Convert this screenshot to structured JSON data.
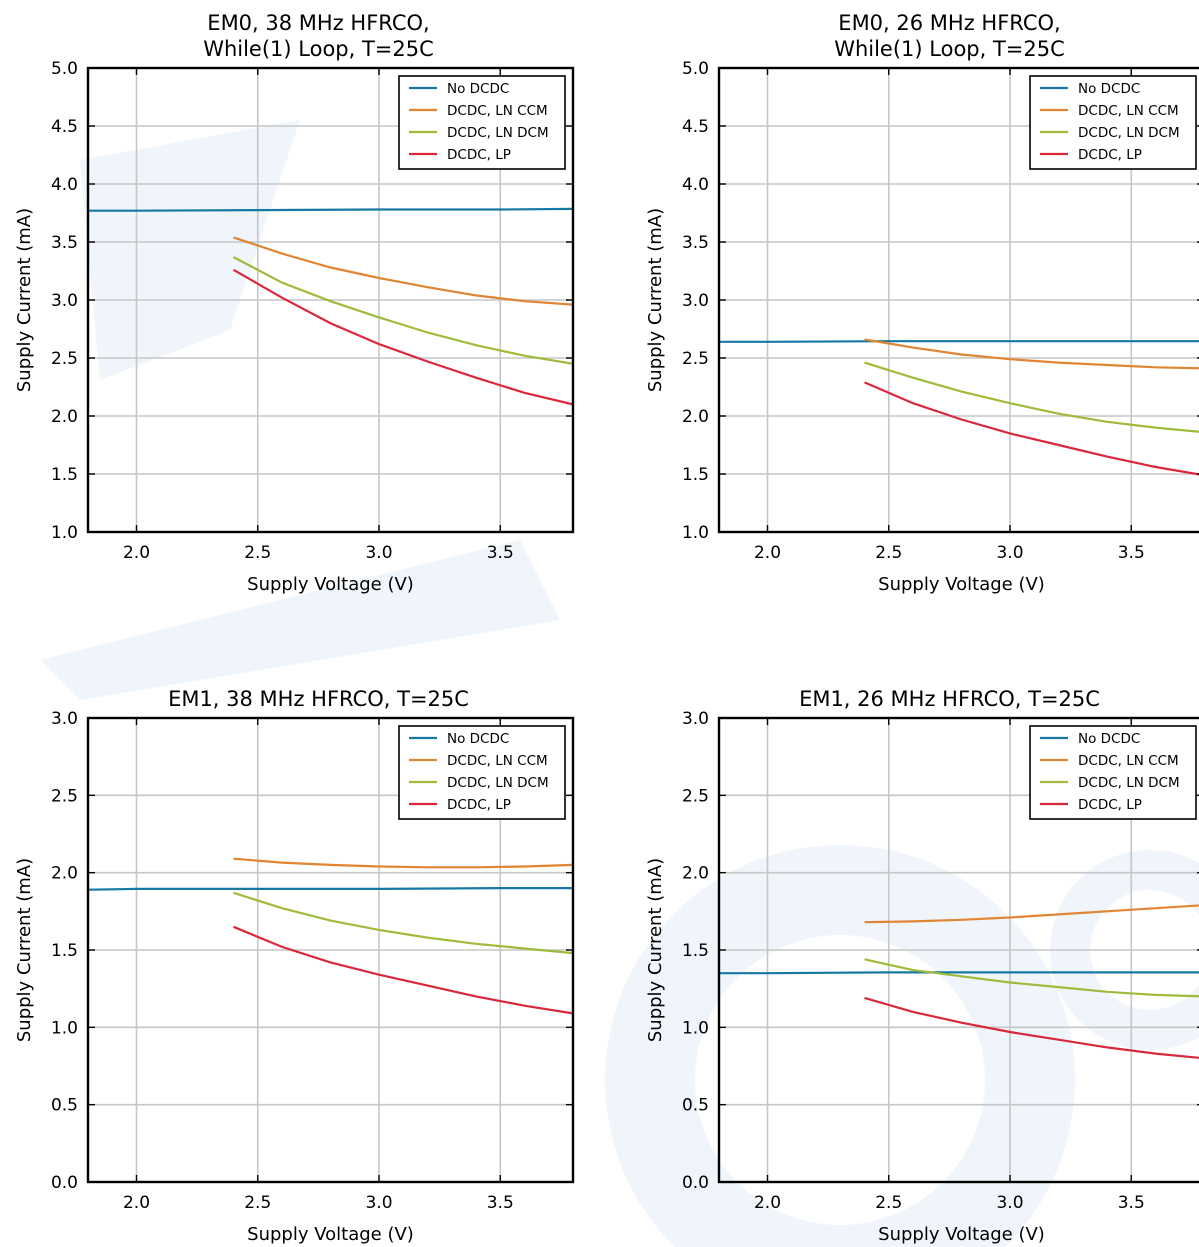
{
  "colors": {
    "no_dcdc": "#1679a3",
    "ln_ccm": "#e08532",
    "ln_dcm": "#9fbb3a",
    "lp": "#d9283a",
    "grid": "#c6c6c6",
    "watermark": "#e4eff9"
  },
  "chart_data": [
    {
      "type": "line",
      "title": [
        "EM0, 38 MHz HFRCO,",
        "While(1) Loop, T=25C"
      ],
      "xlabel": "Supply Voltage (V)",
      "ylabel": "Supply Current (mA)",
      "xlim": [
        1.8,
        3.8
      ],
      "ylim": [
        1.0,
        5.0
      ],
      "xticks": [
        "2.0",
        "2.5",
        "3.0",
        "3.5"
      ],
      "xtick_values": [
        2.0,
        2.5,
        3.0,
        3.5
      ],
      "yticks": [
        "1.0",
        "1.5",
        "2.0",
        "2.5",
        "3.0",
        "3.5",
        "4.0",
        "4.5",
        "5.0"
      ],
      "ytick_values": [
        1.0,
        1.5,
        2.0,
        2.5,
        3.0,
        3.5,
        4.0,
        4.5,
        5.0
      ],
      "grid": true,
      "legend_position": "top-right",
      "series": [
        {
          "name": "No DCDC",
          "x": [
            1.8,
            2.0,
            2.5,
            3.0,
            3.5,
            3.8
          ],
          "y": [
            3.77,
            3.77,
            3.775,
            3.78,
            3.78,
            3.785
          ]
        },
        {
          "name": "DCDC, LN CCM",
          "x": [
            2.4,
            2.6,
            2.8,
            3.0,
            3.2,
            3.4,
            3.6,
            3.8
          ],
          "y": [
            3.54,
            3.4,
            3.28,
            3.19,
            3.11,
            3.04,
            2.99,
            2.96
          ]
        },
        {
          "name": "DCDC, LN DCM",
          "x": [
            2.4,
            2.6,
            2.8,
            3.0,
            3.2,
            3.4,
            3.6,
            3.8
          ],
          "y": [
            3.37,
            3.15,
            2.99,
            2.85,
            2.72,
            2.61,
            2.52,
            2.45
          ]
        },
        {
          "name": "DCDC, LP",
          "x": [
            2.4,
            2.6,
            2.8,
            3.0,
            3.2,
            3.4,
            3.6,
            3.8
          ],
          "y": [
            3.26,
            3.02,
            2.8,
            2.62,
            2.47,
            2.33,
            2.2,
            2.1
          ]
        }
      ]
    },
    {
      "type": "line",
      "title": [
        "EM0, 26 MHz HFRCO,",
        "While(1) Loop, T=25C"
      ],
      "xlabel": "Supply Voltage (V)",
      "ylabel": "Supply Current (mA)",
      "xlim": [
        1.8,
        3.8
      ],
      "ylim": [
        1.0,
        5.0
      ],
      "xticks": [
        "2.0",
        "2.5",
        "3.0",
        "3.5"
      ],
      "xtick_values": [
        2.0,
        2.5,
        3.0,
        3.5
      ],
      "yticks": [
        "1.0",
        "1.5",
        "2.0",
        "2.5",
        "3.0",
        "3.5",
        "4.0",
        "4.5",
        "5.0"
      ],
      "ytick_values": [
        1.0,
        1.5,
        2.0,
        2.5,
        3.0,
        3.5,
        4.0,
        4.5,
        5.0
      ],
      "grid": true,
      "legend_position": "top-right",
      "series": [
        {
          "name": "No DCDC",
          "x": [
            1.8,
            2.0,
            2.5,
            3.0,
            3.5,
            3.8
          ],
          "y": [
            2.64,
            2.64,
            2.645,
            2.645,
            2.645,
            2.645
          ]
        },
        {
          "name": "DCDC, LN CCM",
          "x": [
            2.4,
            2.6,
            2.8,
            3.0,
            3.2,
            3.4,
            3.6,
            3.8
          ],
          "y": [
            2.66,
            2.59,
            2.53,
            2.49,
            2.46,
            2.44,
            2.42,
            2.41
          ]
        },
        {
          "name": "DCDC, LN DCM",
          "x": [
            2.4,
            2.6,
            2.8,
            3.0,
            3.2,
            3.4,
            3.6,
            3.8
          ],
          "y": [
            2.46,
            2.33,
            2.21,
            2.11,
            2.02,
            1.95,
            1.9,
            1.86
          ]
        },
        {
          "name": "DCDC, LP",
          "x": [
            2.4,
            2.6,
            2.8,
            3.0,
            3.2,
            3.4,
            3.6,
            3.8
          ],
          "y": [
            2.29,
            2.11,
            1.97,
            1.85,
            1.75,
            1.65,
            1.56,
            1.49
          ]
        }
      ]
    },
    {
      "type": "line",
      "title": [
        "EM1, 38 MHz HFRCO, T=25C"
      ],
      "xlabel": "Supply Voltage (V)",
      "ylabel": "Supply Current (mA)",
      "xlim": [
        1.8,
        3.8
      ],
      "ylim": [
        0.0,
        3.0
      ],
      "xticks": [
        "2.0",
        "2.5",
        "3.0",
        "3.5"
      ],
      "xtick_values": [
        2.0,
        2.5,
        3.0,
        3.5
      ],
      "yticks": [
        "0.0",
        "0.5",
        "1.0",
        "1.5",
        "2.0",
        "2.5",
        "3.0"
      ],
      "ytick_values": [
        0.0,
        0.5,
        1.0,
        1.5,
        2.0,
        2.5,
        3.0
      ],
      "grid": true,
      "legend_position": "top-right",
      "series": [
        {
          "name": "No DCDC",
          "x": [
            1.8,
            2.0,
            2.5,
            3.0,
            3.5,
            3.8
          ],
          "y": [
            1.89,
            1.895,
            1.895,
            1.895,
            1.9,
            1.9
          ]
        },
        {
          "name": "DCDC, LN CCM",
          "x": [
            2.4,
            2.6,
            2.8,
            3.0,
            3.2,
            3.4,
            3.6,
            3.8
          ],
          "y": [
            2.09,
            2.065,
            2.05,
            2.04,
            2.035,
            2.035,
            2.04,
            2.05
          ]
        },
        {
          "name": "DCDC, LN DCM",
          "x": [
            2.4,
            2.6,
            2.8,
            3.0,
            3.2,
            3.4,
            3.6,
            3.8
          ],
          "y": [
            1.87,
            1.77,
            1.69,
            1.63,
            1.58,
            1.54,
            1.51,
            1.48
          ]
        },
        {
          "name": "DCDC, LP",
          "x": [
            2.4,
            2.6,
            2.8,
            3.0,
            3.2,
            3.4,
            3.6,
            3.8
          ],
          "y": [
            1.65,
            1.52,
            1.42,
            1.34,
            1.27,
            1.2,
            1.14,
            1.09
          ]
        }
      ]
    },
    {
      "type": "line",
      "title": [
        "EM1, 26 MHz HFRCO, T=25C"
      ],
      "xlabel": "Supply Voltage (V)",
      "ylabel": "Supply Current (mA)",
      "xlim": [
        1.8,
        3.8
      ],
      "ylim": [
        0.0,
        3.0
      ],
      "xticks": [
        "2.0",
        "2.5",
        "3.0",
        "3.5"
      ],
      "xtick_values": [
        2.0,
        2.5,
        3.0,
        3.5
      ],
      "yticks": [
        "0.0",
        "0.5",
        "1.0",
        "1.5",
        "2.0",
        "2.5",
        "3.0"
      ],
      "ytick_values": [
        0.0,
        0.5,
        1.0,
        1.5,
        2.0,
        2.5,
        3.0
      ],
      "grid": true,
      "legend_position": "top-right",
      "series": [
        {
          "name": "No DCDC",
          "x": [
            1.8,
            2.0,
            2.5,
            3.0,
            3.5,
            3.8
          ],
          "y": [
            1.35,
            1.35,
            1.355,
            1.355,
            1.355,
            1.355
          ]
        },
        {
          "name": "DCDC, LN CCM",
          "x": [
            2.4,
            2.6,
            2.8,
            3.0,
            3.2,
            3.4,
            3.6,
            3.8
          ],
          "y": [
            1.68,
            1.685,
            1.695,
            1.71,
            1.73,
            1.75,
            1.77,
            1.79
          ]
        },
        {
          "name": "DCDC, LN DCM",
          "x": [
            2.4,
            2.6,
            2.8,
            3.0,
            3.2,
            3.4,
            3.6,
            3.8
          ],
          "y": [
            1.44,
            1.37,
            1.33,
            1.29,
            1.26,
            1.23,
            1.21,
            1.2
          ]
        },
        {
          "name": "DCDC, LP",
          "x": [
            2.4,
            2.6,
            2.8,
            3.0,
            3.2,
            3.4,
            3.6,
            3.8
          ],
          "y": [
            1.19,
            1.1,
            1.03,
            0.97,
            0.92,
            0.87,
            0.83,
            0.8
          ]
        }
      ]
    }
  ]
}
